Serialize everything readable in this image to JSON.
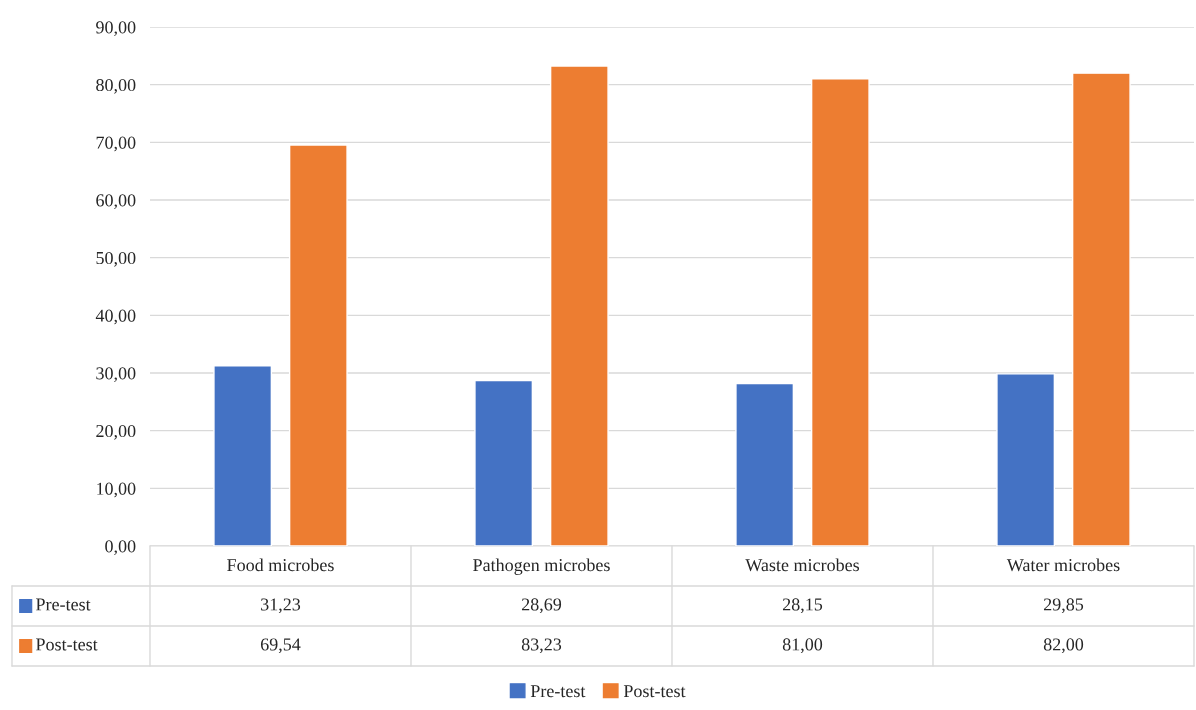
{
  "chart_data": {
    "type": "bar",
    "categories": [
      "Food microbes",
      "Pathogen microbes",
      "Waste microbes",
      "Water microbes"
    ],
    "series": [
      {
        "name": "Pre-test",
        "color": "#4472c4",
        "values": [
          31.23,
          28.69,
          28.15,
          29.85
        ],
        "value_labels": [
          "31,23",
          "28,69",
          "28,15",
          "29,85"
        ]
      },
      {
        "name": "Post-test",
        "color": "#ed7d31",
        "values": [
          69.54,
          83.23,
          81.0,
          82.0
        ],
        "value_labels": [
          "69,54",
          "83,23",
          "81,00",
          "82,00"
        ]
      }
    ],
    "ylim": [
      0,
      90
    ],
    "yticks": [
      {
        "value": 0,
        "label": "0,00"
      },
      {
        "value": 10,
        "label": "10,00"
      },
      {
        "value": 20,
        "label": "20,00"
      },
      {
        "value": 30,
        "label": "30,00"
      },
      {
        "value": 40,
        "label": "40,00"
      },
      {
        "value": 50,
        "label": "50,00"
      },
      {
        "value": 60,
        "label": "60,00"
      },
      {
        "value": 70,
        "label": "70,00"
      },
      {
        "value": 80,
        "label": "80,00"
      },
      {
        "value": 90,
        "label": "90,00"
      }
    ],
    "grid": "y",
    "legend": "bottom"
  }
}
